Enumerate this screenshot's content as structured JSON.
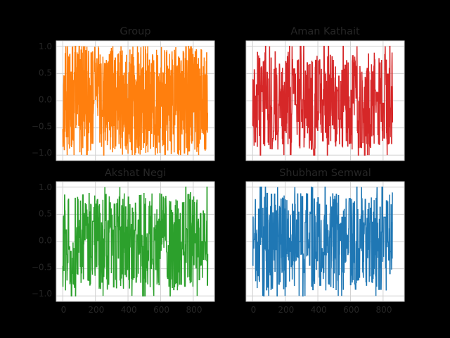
{
  "chart_data": [
    {
      "type": "line",
      "title": "Group",
      "color": "#ff7f0e",
      "seed": 11,
      "n": 890,
      "density": 0.9,
      "amp": 1.0,
      "xlim": [
        -40,
        930
      ],
      "ylim": [
        -1.1,
        1.1
      ],
      "xticks": [
        0,
        200,
        400,
        600,
        800
      ],
      "yticks": [
        1.0,
        0.5,
        0.0,
        -0.5,
        -1.0
      ],
      "yticklabels": [
        "1.0",
        "0.5",
        "0.0",
        "−0.5",
        "−1.0"
      ],
      "grid": true,
      "y_range_shown": [
        -1.0,
        1.0
      ]
    },
    {
      "type": "line",
      "title": "Aman Kathait",
      "color": "#d62728",
      "seed": 23,
      "n": 860,
      "density": 0.55,
      "amp": 0.9,
      "xlim": [
        -40,
        930
      ],
      "ylim": [
        -1.1,
        1.1
      ],
      "xticks": [
        0,
        200,
        400,
        600,
        800
      ],
      "yticks": [
        1.0,
        0.5,
        0.0,
        -0.5,
        -1.0
      ],
      "grid": true,
      "y_range_shown": [
        -1.0,
        1.0
      ]
    },
    {
      "type": "line",
      "title": "Akshat Negi",
      "color": "#2ca02c",
      "seed": 37,
      "n": 890,
      "density": 0.55,
      "amp": 0.9,
      "xlim": [
        -40,
        930
      ],
      "ylim": [
        -1.1,
        1.1
      ],
      "xticks": [
        0,
        200,
        400,
        600,
        800
      ],
      "xticklabels": [
        "0",
        "200",
        "400",
        "600",
        "800"
      ],
      "yticks": [
        1.0,
        0.5,
        0.0,
        -0.5,
        -1.0
      ],
      "yticklabels": [
        "1.0",
        "0.5",
        "0.0",
        "−0.5",
        "−1.0"
      ],
      "grid": true,
      "y_range_shown": [
        -1.0,
        1.0
      ]
    },
    {
      "type": "line",
      "title": "Shubham Semwal",
      "color": "#1f77b4",
      "seed": 51,
      "n": 860,
      "density": 0.55,
      "amp": 0.9,
      "xlim": [
        -40,
        930
      ],
      "ylim": [
        -1.1,
        1.1
      ],
      "xticks": [
        0,
        200,
        400,
        600,
        800
      ],
      "xticklabels": [
        "0",
        "200",
        "400",
        "600",
        "800"
      ],
      "yticks": [
        1.0,
        0.5,
        0.0,
        -0.5,
        -1.0
      ],
      "grid": true,
      "y_range_shown": [
        -1.0,
        1.0
      ]
    }
  ]
}
